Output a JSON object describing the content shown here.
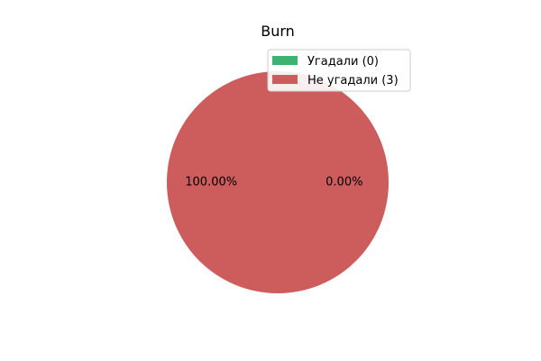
{
  "chart_data": {
    "type": "pie",
    "title": "Burn",
    "slices": [
      {
        "label": "Угадали (0)",
        "value": 0,
        "percent_label": "0.00%",
        "color": "#3cb371"
      },
      {
        "label": "Не угадали (3)",
        "value": 3,
        "percent_label": "100.00%",
        "color": "#cd5c5c"
      }
    ],
    "legend": {
      "placement": "top-right"
    }
  }
}
